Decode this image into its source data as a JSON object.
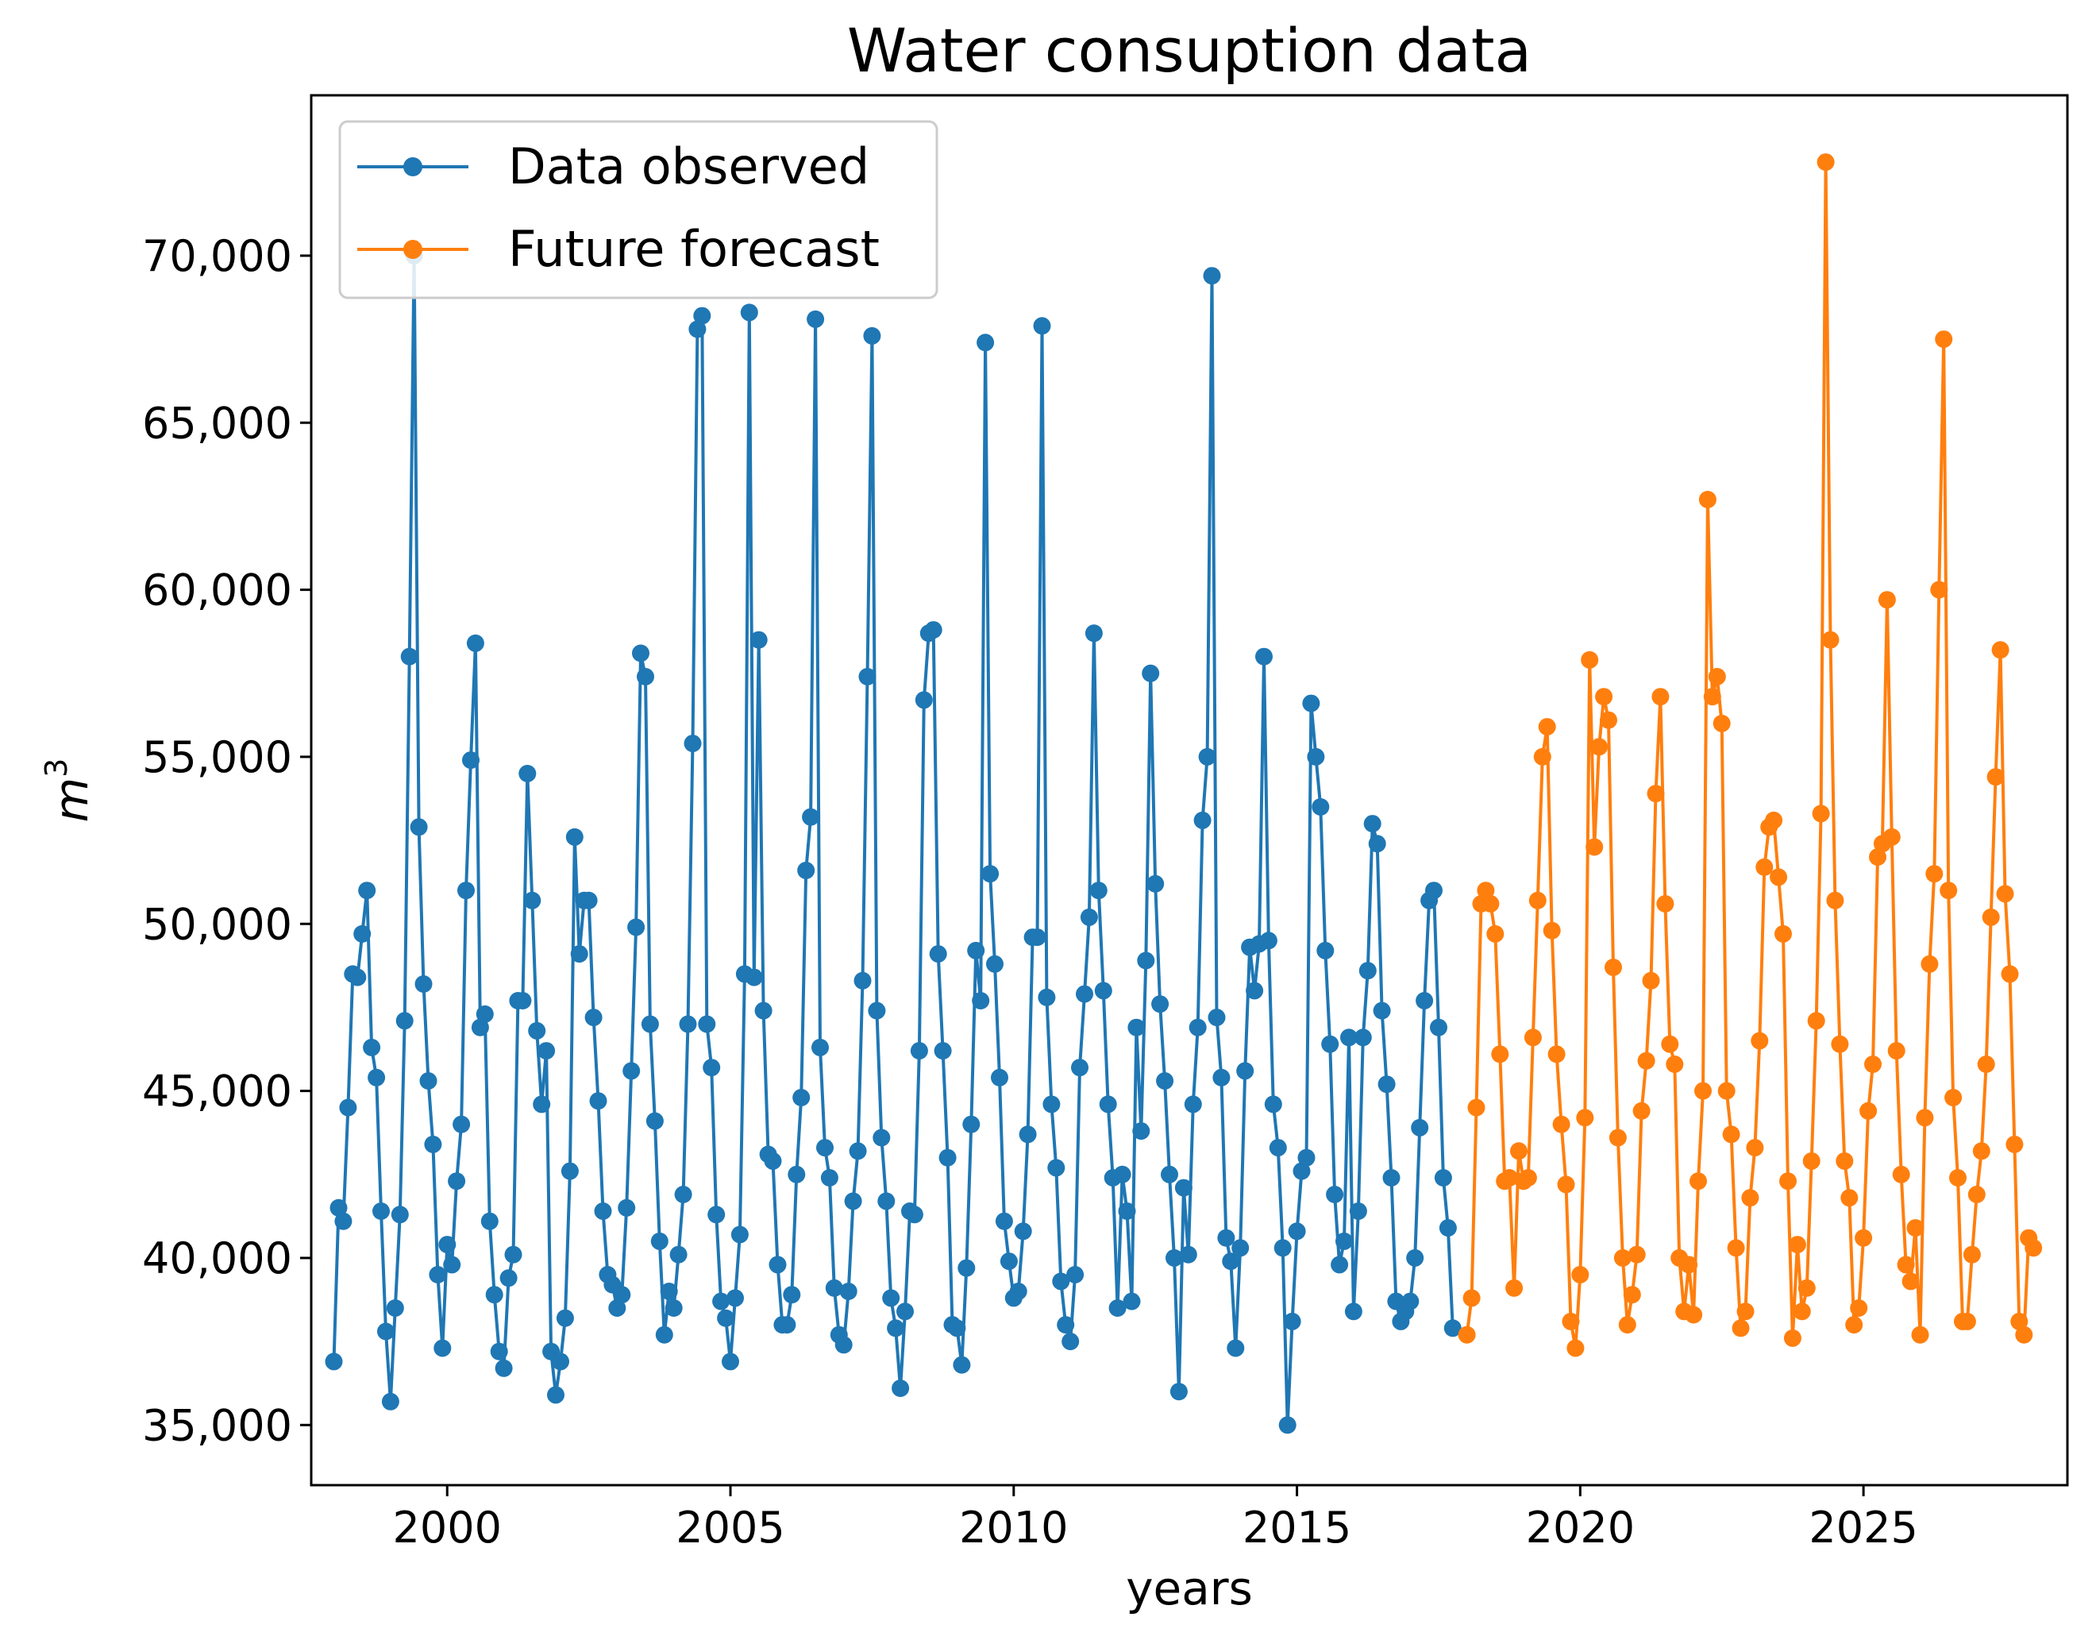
{
  "chart_data": {
    "type": "line",
    "title": "Water consuption data",
    "xlabel": "years",
    "ylabel": "m",
    "ylabel_superscript": "3",
    "xlim": [
      1997.6,
      2028.6
    ],
    "ylim": [
      33200,
      74800
    ],
    "xticks": [
      2000,
      2005,
      2010,
      2015,
      2020,
      2025
    ],
    "xtick_labels": [
      "2000",
      "2005",
      "2010",
      "2015",
      "2020",
      "2025"
    ],
    "yticks": [
      35000,
      40000,
      45000,
      50000,
      55000,
      60000,
      65000,
      70000
    ],
    "ytick_labels": [
      "35,000",
      "40,000",
      "45,000",
      "50,000",
      "55,000",
      "60,000",
      "65,000",
      "70,000"
    ],
    "legend": {
      "position": "upper-left"
    },
    "series": [
      {
        "name": "Data observed",
        "color": "#1f77b4",
        "start_year": 1998.0,
        "step": 0.0833333,
        "values": [
          36900,
          41500,
          41100,
          44500,
          48500,
          48400,
          49700,
          51000,
          46300,
          45400,
          41400,
          37800,
          35700,
          38500,
          41300,
          47100,
          58000,
          70000,
          52900,
          48200,
          45300,
          43400,
          39500,
          37300,
          40400,
          39800,
          42300,
          44000,
          51000,
          54900,
          58400,
          46900,
          47300,
          41100,
          38900,
          37200,
          36700,
          39400,
          40100,
          47700,
          47700,
          54500,
          50700,
          46800,
          44600,
          46200,
          37200,
          35900,
          36900,
          38200,
          42600,
          52600,
          49100,
          50700,
          50700,
          47200,
          44700,
          41400,
          39500,
          39200,
          38500,
          38900,
          41500,
          45600,
          49900,
          58100,
          57400,
          47000,
          44100,
          40500,
          37700,
          39000,
          38500,
          40100,
          41900,
          47000,
          55400,
          67800,
          68200,
          47000,
          45700,
          41300,
          38700,
          38200,
          36900,
          38800,
          40700,
          48500,
          68300,
          48400,
          58500,
          47400,
          43100,
          42900,
          39800,
          38000,
          38000,
          38900,
          42500,
          44800,
          51600,
          53200,
          68100,
          46300,
          43300,
          42400,
          39100,
          37700,
          37400,
          39000,
          41700,
          43200,
          48300,
          57400,
          67600,
          47400,
          43600,
          41700,
          38800,
          37900,
          36100,
          38400,
          41400,
          41300,
          46200,
          56700,
          58700,
          58800,
          49100,
          46200,
          43000,
          38000,
          37900,
          36800,
          39700,
          44000,
          49200,
          47700,
          67400,
          51500,
          48800,
          45400,
          41100,
          39900,
          38800,
          39000,
          40800,
          43700,
          49600,
          49600,
          67900,
          47800,
          44600,
          42700,
          39300,
          38000,
          37500,
          39500,
          45700,
          47900,
          50200,
          58700,
          51000,
          48000,
          44600,
          42400,
          38500,
          42500,
          41400,
          38700,
          46900,
          43800,
          48900,
          57500,
          51200,
          47600,
          45300,
          42500,
          40000,
          36000,
          42100,
          40100,
          44600,
          46900,
          53100,
          55000,
          69400,
          47200,
          45400,
          40600,
          39900,
          37300,
          40300,
          45600,
          49300,
          48000,
          49400,
          58000,
          49500,
          44600,
          43300,
          40300,
          35000,
          38100,
          40800,
          42600,
          43000,
          56600,
          55000,
          53500,
          49200,
          46400,
          41900,
          39800,
          40500,
          46600,
          38400,
          41400,
          46600,
          48600,
          53000,
          52400,
          47400,
          45200,
          42400,
          38700,
          38100,
          38400,
          38700,
          40000,
          43900,
          47700,
          50700,
          51000,
          46900,
          42400,
          40900,
          37900
        ]
      },
      {
        "name": "Future forecast",
        "color": "#ff7f0e",
        "start_year": 2018.0,
        "step": 0.0833333,
        "values": [
          37700,
          38800,
          44500,
          50600,
          51000,
          50600,
          49700,
          46100,
          42300,
          42400,
          39100,
          43200,
          42300,
          42400,
          46600,
          50700,
          55000,
          55900,
          49800,
          46100,
          44000,
          42200,
          38100,
          37300,
          39500,
          44200,
          57900,
          52300,
          55300,
          56800,
          56100,
          48700,
          43600,
          40000,
          38000,
          38900,
          40100,
          44400,
          45900,
          48300,
          53900,
          56800,
          50600,
          46400,
          45800,
          40000,
          38400,
          39800,
          38300,
          42300,
          45000,
          62700,
          56800,
          57400,
          56000,
          45000,
          43700,
          40300,
          37900,
          38400,
          41800,
          43300,
          46500,
          51700,
          52900,
          53100,
          51400,
          49700,
          42300,
          37600,
          40400,
          38400,
          39100,
          42900,
          47100,
          53300,
          72800,
          58500,
          50700,
          46400,
          42900,
          41800,
          38000,
          38500,
          40600,
          44400,
          45800,
          52000,
          52400,
          59700,
          52600,
          46200,
          42500,
          39800,
          39300,
          40900,
          37700,
          44200,
          48800,
          51500,
          60000,
          67500,
          51000,
          44800,
          42400,
          38100,
          38100,
          40100,
          41900,
          43200,
          45800,
          50200,
          54400,
          58200,
          50900,
          48500,
          43400,
          38100,
          37700,
          40600,
          40300
        ]
      }
    ]
  }
}
